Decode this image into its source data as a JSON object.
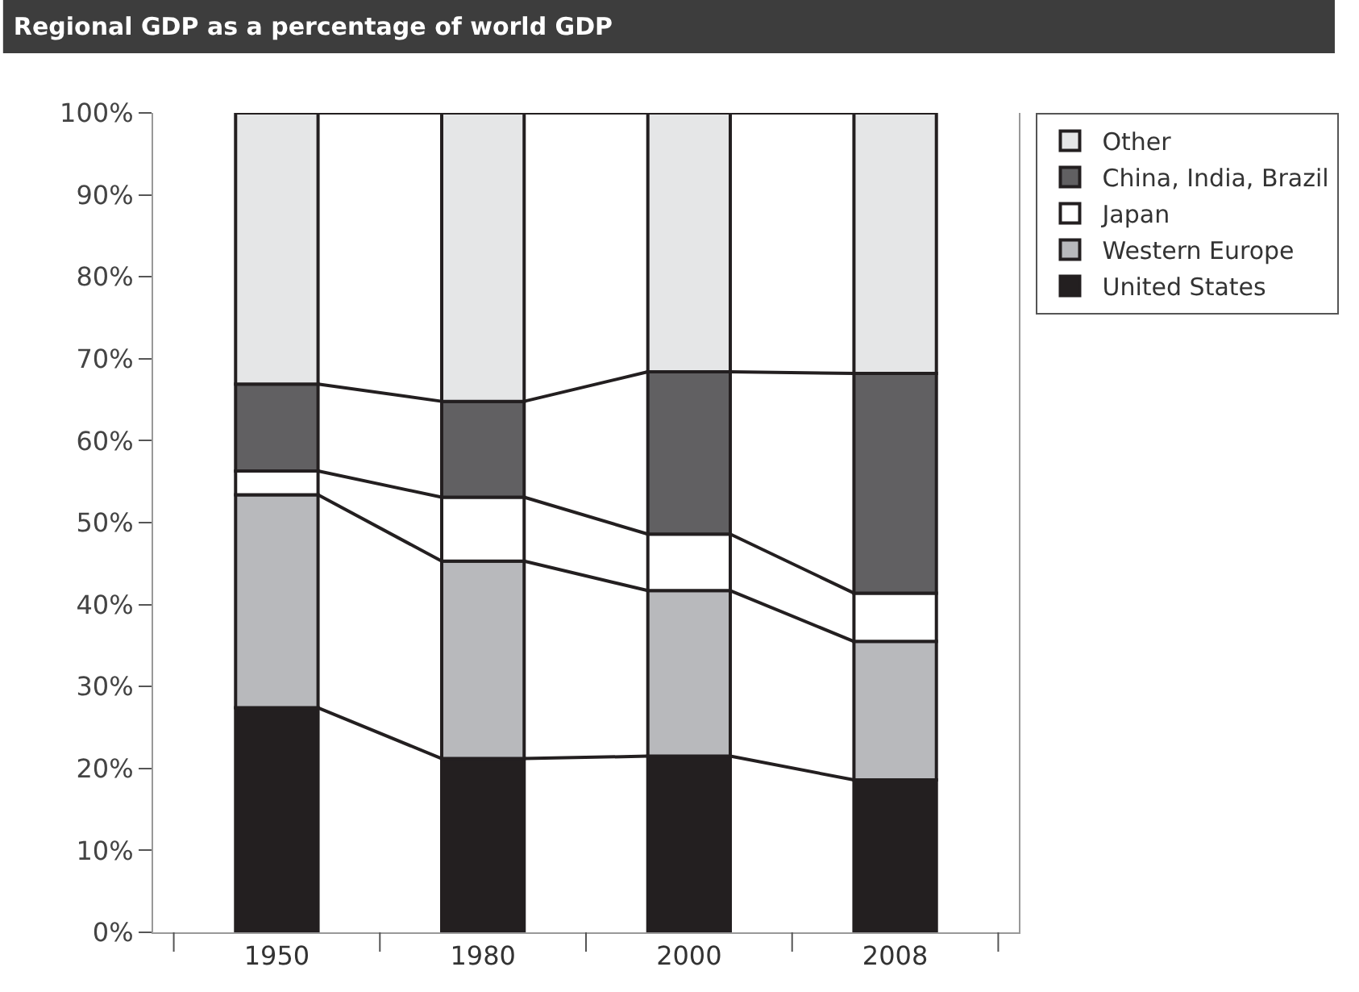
{
  "chart_data": {
    "type": "bar",
    "title": "Regional GDP as a percentage of world GDP",
    "stacked": true,
    "categories": [
      "1950",
      "1980",
      "2000",
      "2008"
    ],
    "series": [
      {
        "name": "United States",
        "color": "#231f20",
        "values": [
          27.4,
          21.2,
          21.5,
          18.6
        ]
      },
      {
        "name": "Western Europe",
        "color": "#b8b9bc",
        "values": [
          26.0,
          24.1,
          20.2,
          16.9
        ]
      },
      {
        "name": "Japan",
        "color": "#ffffff",
        "values": [
          2.9,
          7.8,
          6.9,
          5.9
        ]
      },
      {
        "name": "China, India, Brazil",
        "color": "#616062",
        "values": [
          10.6,
          11.7,
          19.8,
          26.8
        ]
      },
      {
        "name": "Other",
        "color": "#e5e6e7",
        "values": [
          33.1,
          35.2,
          31.6,
          31.8
        ]
      }
    ],
    "ylim": [
      0,
      100
    ],
    "yticks": [
      {
        "value": 0,
        "label": "0%"
      },
      {
        "value": 10,
        "label": "10%"
      },
      {
        "value": 20,
        "label": "20%"
      },
      {
        "value": 30,
        "label": "30%"
      },
      {
        "value": 40,
        "label": "40%"
      },
      {
        "value": 50,
        "label": "50%"
      },
      {
        "value": 60,
        "label": "60%"
      },
      {
        "value": 70,
        "label": "70%"
      },
      {
        "value": 80,
        "label": "80%"
      },
      {
        "value": 90,
        "label": "90%"
      },
      {
        "value": 100,
        "label": "100%"
      }
    ],
    "grid": false,
    "legend": "top right"
  }
}
